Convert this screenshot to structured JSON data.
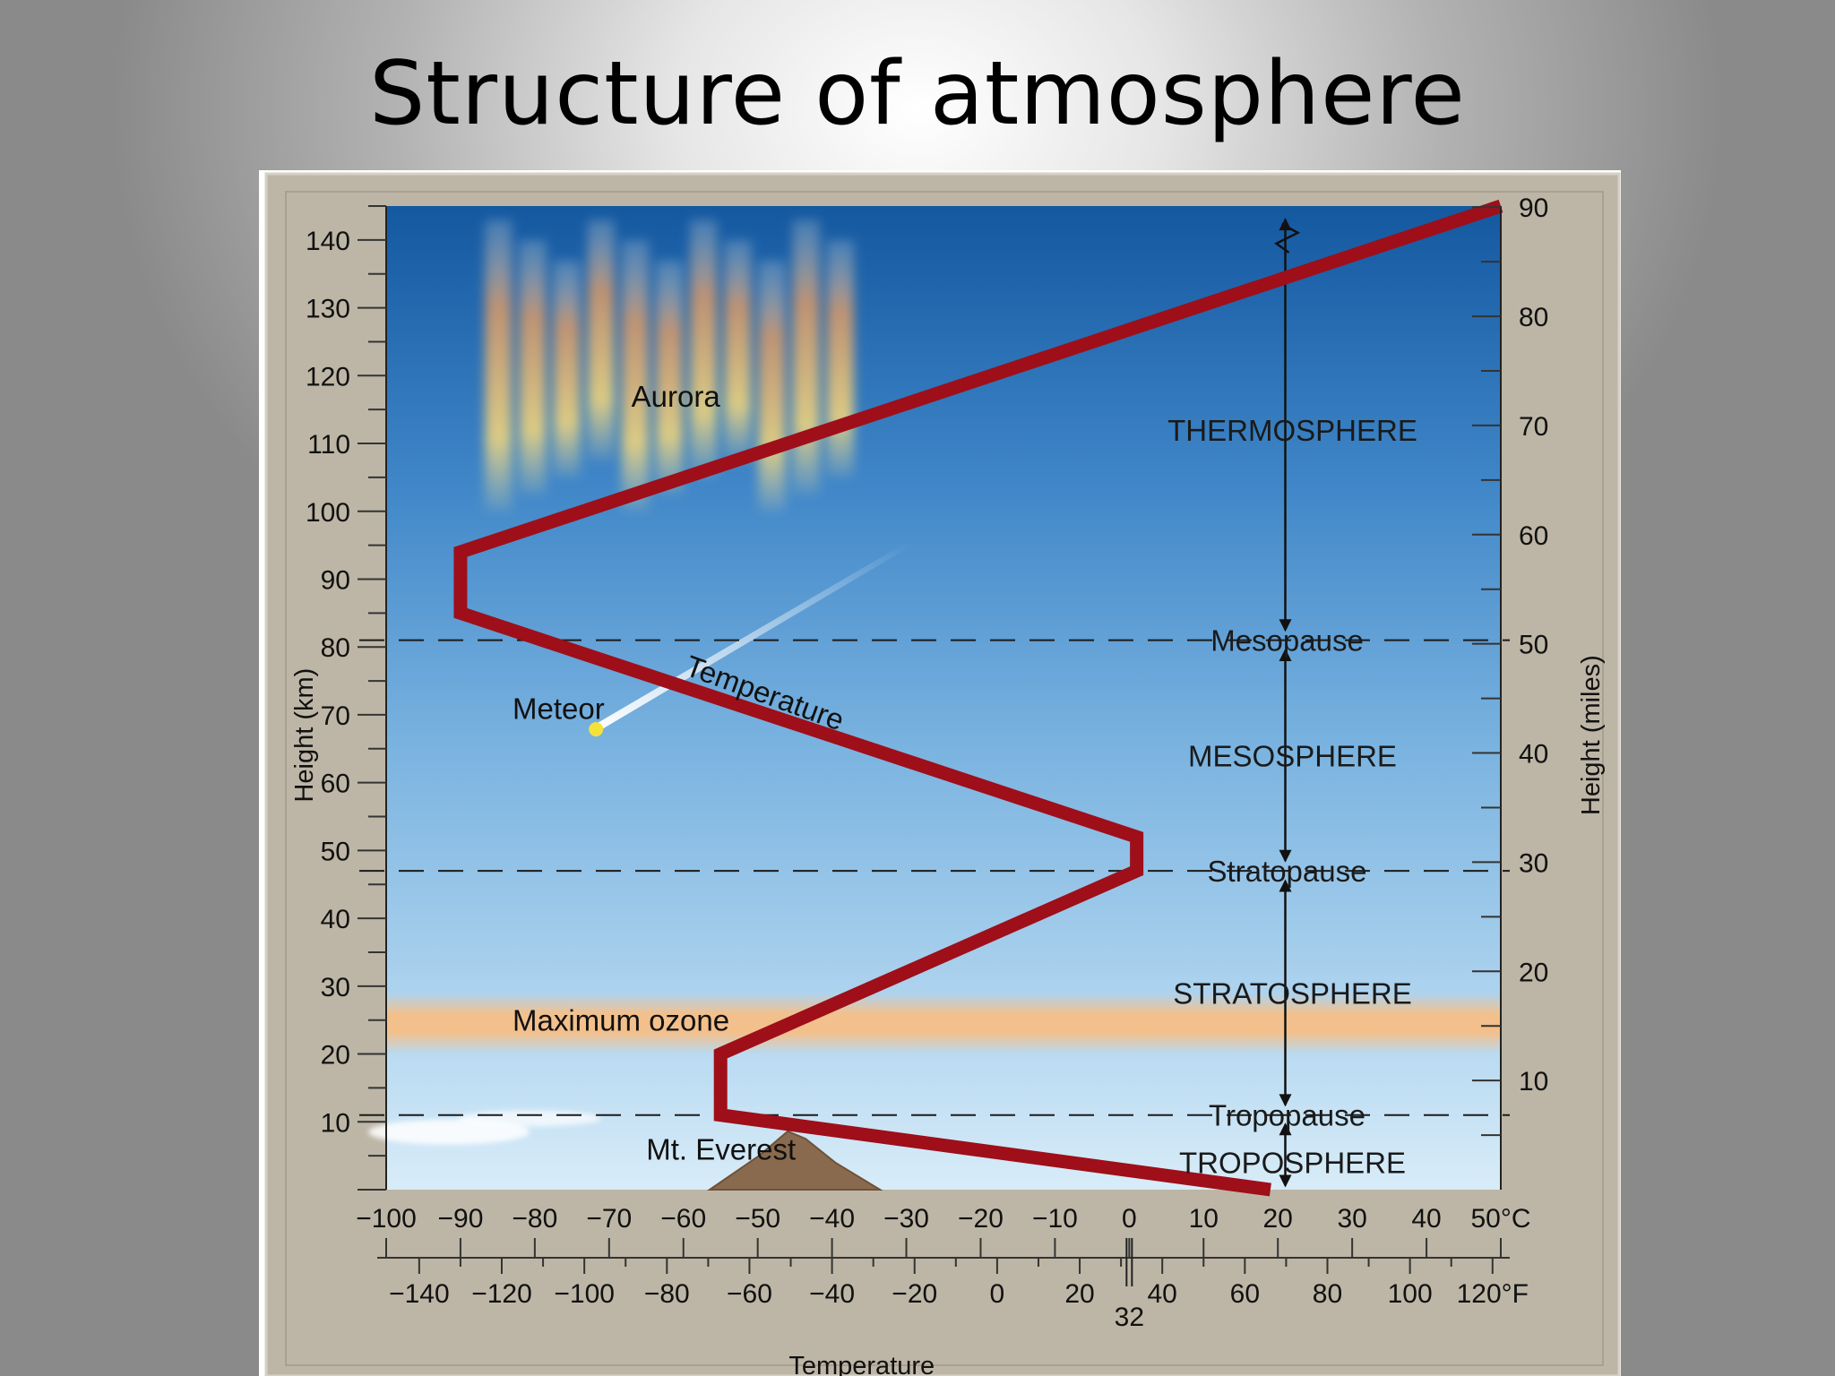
{
  "slide": {
    "title": "Structure of atmosphere"
  },
  "chart_data": {
    "type": "line",
    "title": "",
    "xlabel": "Temperature",
    "ylabel_left": "Height (km)",
    "ylabel_right": "Height (miles)",
    "xlim_celsius": [
      -100,
      50
    ],
    "ylim_km": [
      0,
      145
    ],
    "x_ticks_celsius": [
      "−100",
      "−90",
      "−80",
      "−70",
      "−60",
      "−50",
      "−40",
      "−30",
      "−20",
      "−10",
      "0",
      "10",
      "20",
      "30",
      "40",
      "50°C"
    ],
    "x_ticks_fahrenheit": [
      "−140",
      "−120",
      "−100",
      "−80",
      "−60",
      "−40",
      "−20",
      "0",
      "20",
      "40",
      "60",
      "80",
      "100",
      "120°F"
    ],
    "fahrenheit_values": [
      -140,
      -120,
      -100,
      -80,
      -60,
      -40,
      -20,
      0,
      20,
      40,
      60,
      80,
      100,
      120
    ],
    "freezing_mark_f": "32",
    "y_ticks_km": [
      "10",
      "20",
      "30",
      "40",
      "50",
      "60",
      "70",
      "80",
      "90",
      "100",
      "110",
      "120",
      "130",
      "140"
    ],
    "y_ticks_miles": [
      "10",
      "20",
      "30",
      "40",
      "50",
      "60",
      "70",
      "80",
      "90"
    ],
    "series": [
      {
        "label": "Temperature",
        "color": "#9e0f19",
        "points": [
          {
            "t": 19,
            "h": 0
          },
          {
            "t": -55,
            "h": 11
          },
          {
            "t": -55,
            "h": 20
          },
          {
            "t": 1,
            "h": 47
          },
          {
            "t": 1,
            "h": 52
          },
          {
            "t": -90,
            "h": 85
          },
          {
            "t": -90,
            "h": 94
          },
          {
            "t": 50,
            "h": 145
          }
        ]
      }
    ],
    "boundaries": [
      {
        "label": "Tropopause",
        "h": 11
      },
      {
        "label": "Stratopause",
        "h": 47
      },
      {
        "label": "Mesopause",
        "h": 81
      }
    ],
    "layers": [
      {
        "label": "TROPOSPHERE",
        "h": 4
      },
      {
        "label": "STRATOSPHERE",
        "h": 29
      },
      {
        "label": "MESOSPHERE",
        "h": 64
      },
      {
        "label": "THERMOSPHERE",
        "h": 112
      }
    ],
    "features": [
      {
        "label": "Aurora",
        "t": -67,
        "h": 117
      },
      {
        "label": "Meteor",
        "t": -83,
        "h": 71
      },
      {
        "label": "Maximum ozone",
        "t": -83,
        "h": 25
      },
      {
        "label": "Mt. Everest",
        "t": -65,
        "h": 6
      }
    ],
    "temperature_label": "Temperature",
    "colors": {
      "sky_top": "#1a63a8",
      "sky_bottom": "#c9e4f5",
      "ozone": "#f6bf87",
      "line": "#9e0f19",
      "frame": "#beb7a8"
    }
  }
}
